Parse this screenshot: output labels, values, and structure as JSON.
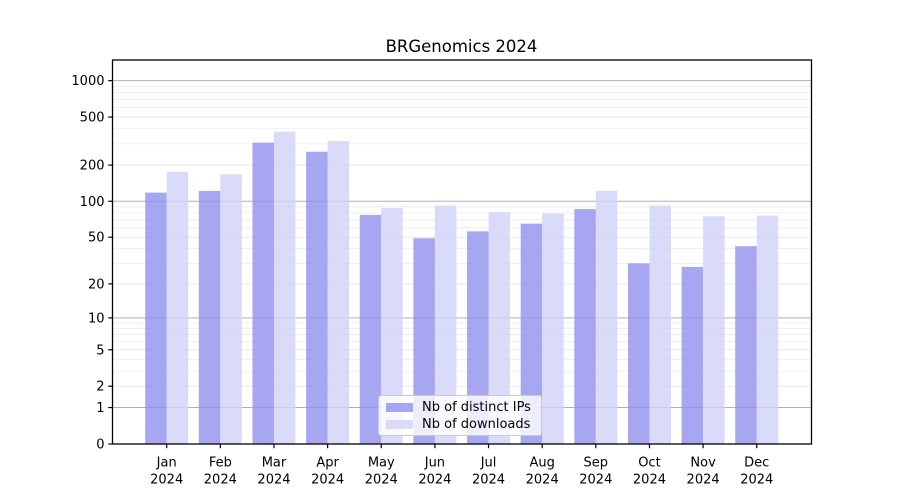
{
  "title": "BRGenomics 2024",
  "chart_data": {
    "type": "bar",
    "title": "BRGenomics 2024",
    "categories": [
      "Jan",
      "Feb",
      "Mar",
      "Apr",
      "May",
      "Jun",
      "Jul",
      "Aug",
      "Sep",
      "Oct",
      "Nov",
      "Dec"
    ],
    "xtick_second_line": "2024",
    "series": [
      {
        "name": "Nb of distinct IPs",
        "color": "#9090ee",
        "values": [
          118,
          122,
          307,
          258,
          77,
          49,
          56,
          65,
          86,
          30,
          28,
          42
        ]
      },
      {
        "name": "Nb of downloads",
        "color": "#d1d1f7",
        "values": [
          176,
          168,
          378,
          317,
          88,
          92,
          81,
          79,
          122,
          92,
          75,
          76
        ]
      }
    ],
    "bar_alpha": 0.8,
    "yscale": "log1p",
    "ylim": [
      0,
      1480
    ],
    "yticks": [
      0,
      1,
      2,
      5,
      10,
      20,
      50,
      100,
      200,
      500,
      1000
    ],
    "major_grid_ticks": [
      1,
      10,
      100,
      1000
    ],
    "light_grid_ticks": [
      2,
      5,
      20,
      50,
      200,
      500
    ],
    "minor_grid_values": [
      3,
      4,
      6,
      7,
      8,
      9,
      30,
      40,
      60,
      70,
      80,
      90,
      300,
      400,
      600,
      700,
      800,
      900
    ],
    "grid_color_major": "#b0b0b0",
    "grid_color_light": "#e2e2e2",
    "grid_color_minor": "#ebebeb",
    "legend_position": "lower center",
    "legend_labels": [
      "Nb of distinct IPs",
      "Nb of downloads"
    ]
  }
}
